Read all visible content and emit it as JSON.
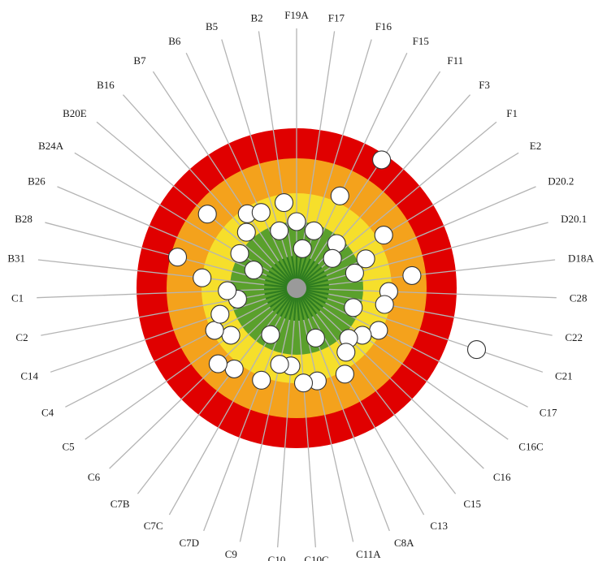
{
  "chart_data": {
    "type": "radar-target",
    "title": "",
    "rings": [
      {
        "level": 1,
        "color": "#5aa02c"
      },
      {
        "level": 2,
        "color": "#f6df2b"
      },
      {
        "level": 3,
        "color": "#f4a21c"
      },
      {
        "level": 4,
        "color": "#e00000"
      }
    ],
    "max_level": 5,
    "spokes": [
      {
        "label": "F19A",
        "value": 1.0
      },
      {
        "label": "F17",
        "value": 0.6
      },
      {
        "label": "F16",
        "value": 0.9
      },
      {
        "label": "F15",
        "value": 2.2
      },
      {
        "label": "F11",
        "value": 3.8
      },
      {
        "label": "F3",
        "value": 0.9
      },
      {
        "label": "F1",
        "value": 0.7
      },
      {
        "label": "E2",
        "value": 2.2
      },
      {
        "label": "D20.2",
        "value": 1.3
      },
      {
        "label": "D20.1",
        "value": 0.9
      },
      {
        "label": "D18A",
        "value": 2.6
      },
      {
        "label": "C28",
        "value": 1.9
      },
      {
        "label": "C22",
        "value": 1.8
      },
      {
        "label": "C21",
        "value": 0.9
      },
      {
        "label": "C17",
        "value": 1.9
      },
      {
        "label": "C16C",
        "value": 1.5
      },
      {
        "label": "C16",
        "value": 1.2
      },
      {
        "label": "C15",
        "value": 1.5
      },
      {
        "label": "C13",
        "value": 2.1
      },
      {
        "label": "C8A",
        "value": 0.8
      },
      {
        "label": "C11A",
        "value": 2.0
      },
      {
        "label": "C10C",
        "value": 2.0
      },
      {
        "label": "C10",
        "value": 1.4
      },
      {
        "label": "C9",
        "value": 1.4
      },
      {
        "label": "C7D",
        "value": 2.1
      },
      {
        "label": "C7C",
        "value": 0.8
      },
      {
        "label": "C7B",
        "value": 2.2
      },
      {
        "label": "C6",
        "value": 2.4
      },
      {
        "label": "C5",
        "value": 1.5
      },
      {
        "label": "C4",
        "value": 1.9
      },
      {
        "label": "C14",
        "value": 1.5
      },
      {
        "label": "C2",
        "value": 0.9
      },
      {
        "label": "C1",
        "value": 1.1
      },
      {
        "label": "B31",
        "value": 2.0
      },
      {
        "label": "B28",
        "value": 2.8
      },
      {
        "label": "B26",
        "value": 0.7
      },
      {
        "label": "B24A",
        "value": 1.0
      },
      {
        "label": "B20E",
        "value": 2.6
      },
      {
        "label": "B16",
        "value": 1.3
      },
      {
        "label": "B7",
        "value": 1.8
      },
      {
        "label": "B6",
        "value": 1.6
      },
      {
        "label": "B5",
        "value": 0.9
      },
      {
        "label": "B2",
        "value": 1.7
      }
    ],
    "extra_point": {
      "label": "C21",
      "value": 5.0
    },
    "grid": true,
    "legend": "none"
  }
}
